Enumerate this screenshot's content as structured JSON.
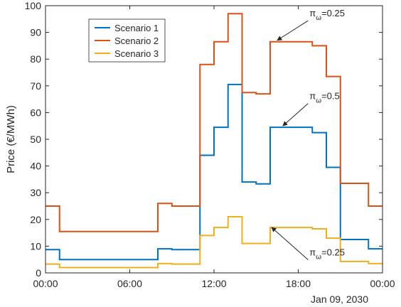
{
  "chart_data": {
    "type": "line",
    "step": true,
    "ylabel": "Price (€/MWh)",
    "ylim": [
      0,
      100
    ],
    "yticks": [
      0,
      10,
      20,
      30,
      40,
      50,
      60,
      70,
      80,
      90,
      100
    ],
    "xlim": [
      0,
      24
    ],
    "xticks": [
      0,
      6,
      12,
      18,
      24
    ],
    "xticklabels": [
      "00:00",
      "06:00",
      "12:00",
      "18:00",
      "00:00"
    ],
    "date_label": "Jan 09, 2030",
    "grid": false,
    "legend": "top-left",
    "x": [
      0,
      1,
      2,
      3,
      4,
      5,
      6,
      7,
      8,
      9,
      10,
      11,
      12,
      13,
      14,
      15,
      16,
      17,
      18,
      19,
      20,
      21,
      22,
      23,
      24
    ],
    "series": [
      {
        "name": "Scenario 1",
        "color": "#0072BD",
        "values": [
          8.7,
          5.0,
          5.0,
          5.0,
          5.0,
          5.0,
          5.0,
          5.0,
          9.0,
          8.7,
          8.7,
          44.0,
          54.5,
          70.5,
          34.0,
          33.3,
          54.5,
          54.5,
          54.5,
          52.5,
          39.5,
          12.5,
          12.5,
          9.0,
          9.0
        ]
      },
      {
        "name": "Scenario 2",
        "color": "#D95319",
        "values": [
          25.0,
          15.5,
          15.5,
          15.5,
          15.5,
          15.5,
          15.5,
          15.5,
          26.0,
          25.0,
          25.0,
          78.0,
          86.5,
          97.0,
          67.5,
          67.0,
          86.5,
          86.5,
          86.5,
          85.0,
          73.5,
          33.5,
          33.5,
          25.0,
          25.0
        ]
      },
      {
        "name": "Scenario 3",
        "color": "#EDB120",
        "values": [
          3.3,
          2.0,
          2.0,
          2.0,
          2.0,
          2.0,
          2.0,
          2.0,
          3.5,
          3.3,
          3.3,
          14.0,
          17.0,
          21.0,
          11.0,
          11.0,
          17.0,
          17.0,
          17.0,
          16.5,
          13.0,
          4.3,
          4.3,
          3.5,
          3.5
        ]
      }
    ],
    "annotations": [
      {
        "text": "=0.25",
        "symbol": "π",
        "sub": "ω",
        "target_x": 16.4,
        "target_y": 86.5,
        "label_x": 18.8,
        "label_y": 96
      },
      {
        "text": "=0.5",
        "symbol": "π",
        "sub": "ω",
        "target_x": 16.8,
        "target_y": 54.5,
        "label_x": 18.8,
        "label_y": 65
      },
      {
        "text": "=0.25",
        "symbol": "π",
        "sub": "ω",
        "target_x": 16.0,
        "target_y": 16.5,
        "label_x": 18.8,
        "label_y": 6.5
      }
    ]
  }
}
